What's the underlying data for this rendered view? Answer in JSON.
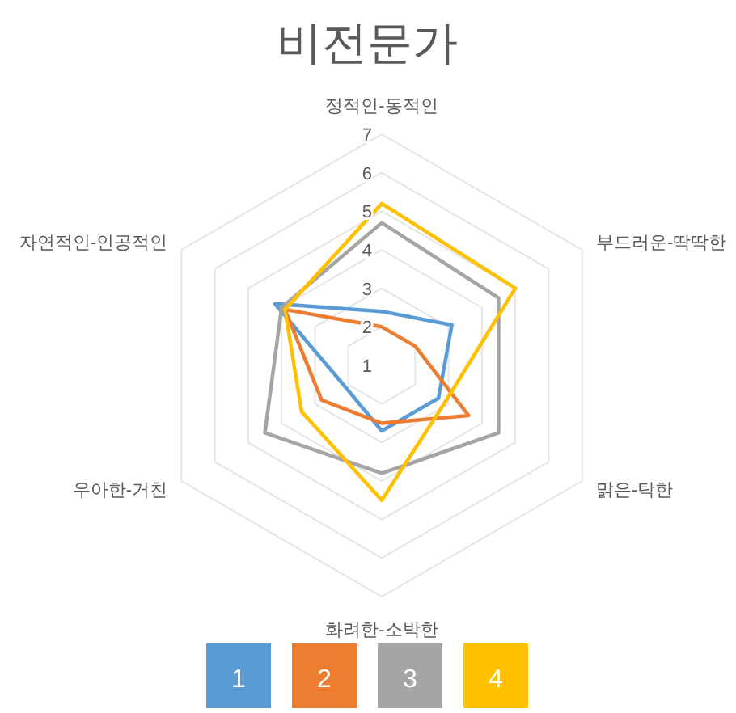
{
  "chart_data": {
    "type": "radar",
    "title": "비전문가",
    "categories": [
      "정적인-동적인",
      "부드러운-딱딱한",
      "맑은-탁한",
      "화려한-소박한",
      "우아한-거친",
      "자연적인-인공적인"
    ],
    "ylim": [
      1,
      7
    ],
    "yticks": [
      1,
      2,
      3,
      4,
      5,
      6,
      7
    ],
    "legend": "bottom",
    "grid": true,
    "series": [
      {
        "name": "1",
        "color": "#5b9bd5",
        "values": [
          2.4,
          3.1,
          2.7,
          2.7,
          2.1,
          4.2
        ]
      },
      {
        "name": "2",
        "color": "#ed7d31",
        "values": [
          2.0,
          2.0,
          3.6,
          2.5,
          2.8,
          3.9
        ]
      },
      {
        "name": "3",
        "color": "#a5a5a5",
        "values": [
          4.7,
          4.5,
          4.5,
          3.8,
          4.5,
          4.0
        ]
      },
      {
        "name": "4",
        "color": "#ffc000",
        "values": [
          5.2,
          5.0,
          2.9,
          4.5,
          3.4,
          3.9
        ]
      }
    ]
  }
}
